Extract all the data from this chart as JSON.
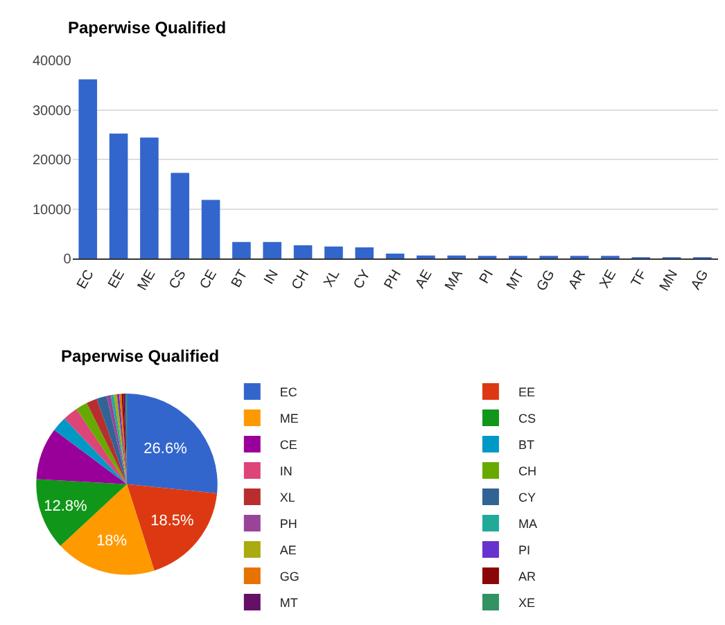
{
  "chart_data": [
    {
      "type": "bar",
      "title": "Paperwise Qualified",
      "categories": [
        "EC",
        "EE",
        "ME",
        "CS",
        "CE",
        "BT",
        "IN",
        "CH",
        "XL",
        "CY",
        "PH",
        "AE",
        "MA",
        "PI",
        "MT",
        "GG",
        "AR",
        "XE",
        "TF",
        "MN",
        "AG"
      ],
      "series": [
        {
          "color": "#3366cc",
          "values": [
            36200,
            25250,
            24430,
            17290,
            11850,
            3350,
            3350,
            2700,
            2440,
            2260,
            1000,
            630,
            630,
            450,
            450,
            450,
            420,
            350,
            180,
            150,
            100
          ]
        }
      ],
      "ylim": [
        0,
        40000
      ],
      "yticks": [
        0,
        10000,
        20000,
        30000,
        40000
      ],
      "grid": "y",
      "legend": false
    },
    {
      "type": "pie",
      "title": "Paperwise Qualified",
      "categories": [
        "EC",
        "EE",
        "ME",
        "CS",
        "CE",
        "BT",
        "IN",
        "CH",
        "XL",
        "CY",
        "PH",
        "MA",
        "AE",
        "PI",
        "GG",
        "AR",
        "MT",
        "XE"
      ],
      "values": [
        26.6,
        18.5,
        18,
        12.8,
        9.3,
        2.7,
        2.7,
        2.1,
        1.9,
        1.8,
        0.75,
        0.55,
        0.55,
        0.4,
        0.4,
        0.35,
        0.35,
        0.25
      ],
      "value_labels": [
        "26.6%",
        "18.5%",
        "18%",
        "12.8%",
        null,
        null,
        null,
        null,
        null,
        null,
        null,
        null,
        null,
        null,
        null,
        null,
        null,
        null
      ],
      "colors": [
        "#3366cc",
        "#dc3912",
        "#ff9900",
        "#109618",
        "#990099",
        "#0099c6",
        "#dd4477",
        "#66aa00",
        "#b82e2e",
        "#316395",
        "#994499",
        "#22aa99",
        "#aaaa11",
        "#6633cc",
        "#e67300",
        "#8b0707",
        "#651067",
        "#329262"
      ],
      "legend": "right"
    }
  ]
}
